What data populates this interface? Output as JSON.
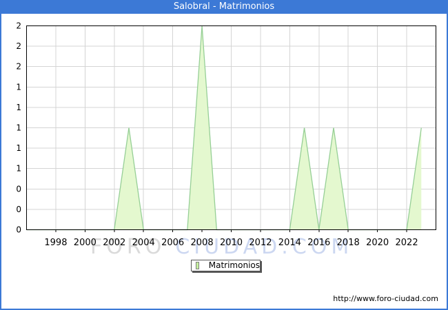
{
  "window": {
    "title": "Salobral - Matrimonios"
  },
  "chart_data": {
    "type": "area",
    "title": "Salobral - Matrimonios",
    "series": [
      {
        "name": "Matrimonios",
        "x": [
          1996,
          1997,
          1998,
          1999,
          2000,
          2001,
          2002,
          2003,
          2004,
          2005,
          2006,
          2007,
          2008,
          2009,
          2010,
          2011,
          2012,
          2013,
          2014,
          2015,
          2016,
          2017,
          2018,
          2019,
          2020,
          2021,
          2022,
          2023
        ],
        "values": [
          0,
          0,
          0,
          0,
          0,
          0,
          0,
          1,
          0,
          0,
          0,
          0,
          2,
          0,
          0,
          0,
          0,
          0,
          0,
          1,
          0,
          1,
          0,
          0,
          0,
          0,
          0,
          1
        ]
      }
    ],
    "xlim": [
      1996,
      2024
    ],
    "ylim": [
      0,
      2
    ],
    "x_ticks": [
      1998,
      2000,
      2002,
      2004,
      2006,
      2008,
      2010,
      2012,
      2014,
      2016,
      2018,
      2020,
      2022
    ],
    "y_tick_labels": [
      "2",
      "2",
      "2",
      "1",
      "1",
      "1",
      "1",
      "1",
      "0",
      "0",
      "0"
    ],
    "grid": true,
    "legend_position": "bottom-center"
  },
  "legend": {
    "label": "Matrimonios"
  },
  "watermark": {
    "part1": "FORO",
    "part2": "CIUDAD.COM"
  },
  "footer": {
    "url": "http://www.foro-ciudad.com"
  },
  "colors": {
    "titlebar": "#3c79d6",
    "border": "#3c79d6",
    "area_fill": "#e4f8cf",
    "area_line": "#96cf96",
    "gridline": "#d4d4d4",
    "plot_border": "#000000",
    "tick": "#000000",
    "watermark_gray": "#dadada",
    "watermark_blue": "#ccd7f1",
    "legend_swatch_fill": "#c6f2a0",
    "legend_swatch_border": "#7d7d7d"
  }
}
